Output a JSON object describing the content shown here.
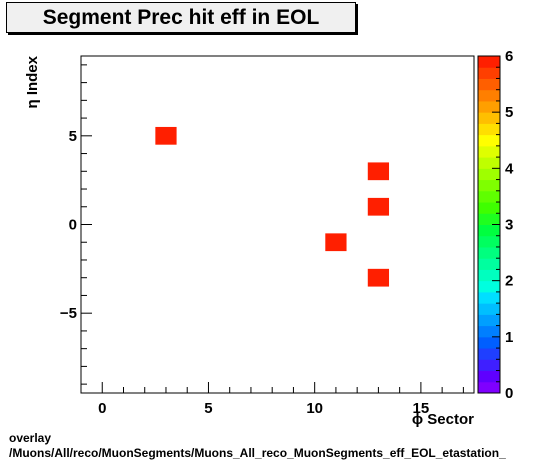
{
  "chart_data": {
    "type": "heatmap",
    "title": "Segment Prec hit eff in EOL",
    "xlabel": "ϕ Sector",
    "ylabel": "η Index",
    "xlim": [
      -1,
      17.5
    ],
    "ylim": [
      -9.5,
      9.5
    ],
    "x_ticks": [
      0,
      5,
      10,
      15
    ],
    "y_ticks": [
      -5,
      0,
      5
    ],
    "z_range": [
      0,
      6
    ],
    "z_ticks": [
      0,
      1,
      2,
      3,
      4,
      5,
      6
    ],
    "bin_width": 1,
    "cells": [
      {
        "x": 3,
        "y": 5,
        "value": 6
      },
      {
        "x": 13,
        "y": 3,
        "value": 6
      },
      {
        "x": 13,
        "y": 1,
        "value": 6
      },
      {
        "x": 11,
        "y": -1,
        "value": 6
      },
      {
        "x": 13,
        "y": -3,
        "value": 6
      }
    ],
    "palette": [
      "#7f00ff",
      "#5f00ff",
      "#3f1fff",
      "#1f3fff",
      "#005fff",
      "#007fff",
      "#009fff",
      "#00bfff",
      "#00dfff",
      "#00ffdf",
      "#00ffbf",
      "#00ff9f",
      "#00ff7f",
      "#00ff5f",
      "#00ff3f",
      "#1fff1f",
      "#3fff00",
      "#5fff00",
      "#7fff00",
      "#9fff00",
      "#bfff00",
      "#dfff00",
      "#ffff00",
      "#ffdf00",
      "#ffbf00",
      "#ff9f00",
      "#ff7f00",
      "#ff5f00",
      "#ff3f00",
      "#ff1f00"
    ]
  },
  "footer": {
    "line1": "overlay",
    "line2": "/Muons/All/reco/MuonSegments/Muons_All_reco_MuonSegments_eff_EOL_etastation_"
  }
}
